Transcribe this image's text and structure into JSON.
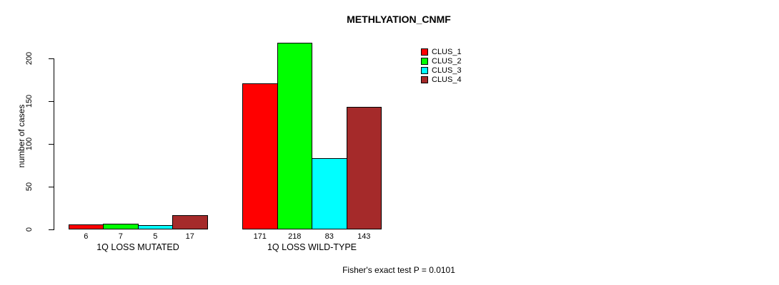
{
  "title": "METHLYATION_CNMF",
  "footer": "Fisher's exact test P = 0.0101",
  "y_axis": {
    "label": "number of cases",
    "ticks": [
      0,
      50,
      100,
      150,
      200
    ]
  },
  "legend": {
    "entries": [
      {
        "label": "CLUS_1",
        "color": "#ff0000"
      },
      {
        "label": "CLUS_2",
        "color": "#00ff00"
      },
      {
        "label": "CLUS_3",
        "color": "#00ffff"
      },
      {
        "label": "CLUS_4",
        "color": "#a52a2a"
      }
    ]
  },
  "chart_data": {
    "type": "bar",
    "title": "METHLYATION_CNMF",
    "xlabel": "",
    "ylabel": "number of cases",
    "ylim": [
      0,
      218
    ],
    "yticks": [
      0,
      50,
      100,
      150,
      200
    ],
    "grid": false,
    "legend_position": "top-right-inside",
    "categories": [
      "1Q LOSS MUTATED",
      "1Q LOSS WILD-TYPE"
    ],
    "series": [
      {
        "name": "CLUS_1",
        "color": "#ff0000",
        "values": [
          6,
          171
        ]
      },
      {
        "name": "CLUS_2",
        "color": "#00ff00",
        "values": [
          7,
          218
        ]
      },
      {
        "name": "CLUS_3",
        "color": "#00ffff",
        "values": [
          5,
          83
        ]
      },
      {
        "name": "CLUS_4",
        "color": "#a52a2a",
        "values": [
          17,
          143
        ]
      }
    ],
    "bar_value_labels": [
      [
        "6",
        "7",
        "5",
        "17"
      ],
      [
        "171",
        "218",
        "83",
        "143"
      ]
    ],
    "annotation": "Fisher's exact test P = 0.0101"
  }
}
